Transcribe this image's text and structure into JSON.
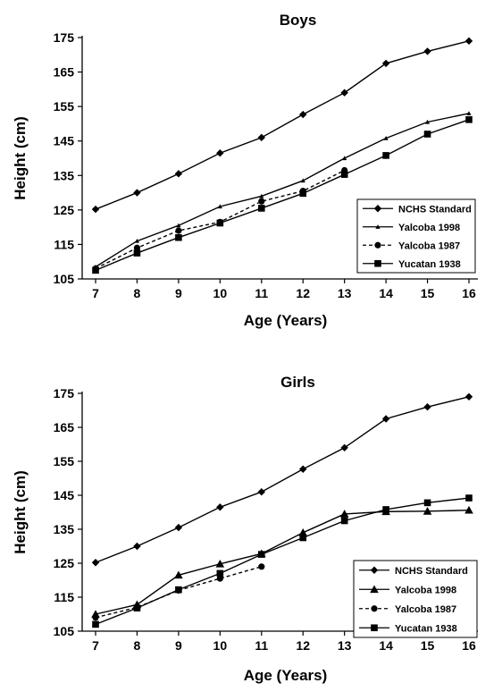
{
  "chart_data": [
    {
      "type": "line",
      "title": "Boys",
      "xlabel": "Age (Years)",
      "ylabel": "Height (cm)",
      "xlim": [
        7,
        16
      ],
      "ylim": [
        105,
        175
      ],
      "x_ticks": [
        "7",
        "8",
        "9",
        "10",
        "11",
        "12",
        "13",
        "14",
        "15",
        "16"
      ],
      "y_ticks": [
        "175",
        "165",
        "155",
        "145",
        "135",
        "125",
        "115",
        "105"
      ],
      "grid": false,
      "legend_position": "bottom-right",
      "series": [
        {
          "name": "NCHS Standard",
          "marker": "diamond",
          "dash": "solid",
          "x": [
            7,
            8,
            9,
            10,
            11,
            12,
            13,
            14,
            15,
            16
          ],
          "y": [
            125.2,
            130,
            135.5,
            141.5,
            146,
            152.7,
            159,
            167.5,
            171,
            174
          ]
        },
        {
          "name": "Yalcoba 1998",
          "marker": "small-triangle",
          "dash": "solid",
          "x": [
            7,
            8,
            9,
            10,
            11,
            12,
            13,
            14,
            15,
            16
          ],
          "y": [
            108.5,
            116,
            120.5,
            126,
            129,
            133.5,
            140,
            145.8,
            150.5,
            153
          ]
        },
        {
          "name": "Yalcoba 1987",
          "marker": "circle",
          "dash": "dashed",
          "x": [
            7,
            8,
            9,
            10,
            11,
            12,
            13
          ],
          "y": [
            108,
            114,
            119,
            121.5,
            127.5,
            130.5,
            136.5
          ]
        },
        {
          "name": "Yucatan 1938",
          "marker": "square",
          "dash": "solid",
          "x": [
            7,
            8,
            9,
            10,
            11,
            12,
            13,
            14,
            15,
            16
          ],
          "y": [
            107.5,
            112.5,
            117,
            121.2,
            125.5,
            129.8,
            135.3,
            140.8,
            147,
            151.2
          ]
        }
      ]
    },
    {
      "type": "line",
      "title": "Girls",
      "xlabel": "Age (Years)",
      "ylabel": "Height (cm)",
      "xlim": [
        7,
        16
      ],
      "ylim": [
        105,
        175
      ],
      "x_ticks": [
        "7",
        "8",
        "9",
        "10",
        "11",
        "12",
        "13",
        "14",
        "15",
        "16"
      ],
      "y_ticks": [
        "175",
        "165",
        "155",
        "145",
        "135",
        "125",
        "115",
        "105"
      ],
      "grid": false,
      "legend_position": "bottom-right",
      "series": [
        {
          "name": "NCHS Standard",
          "marker": "diamond",
          "dash": "solid",
          "x": [
            7,
            8,
            9,
            10,
            11,
            12,
            13,
            14,
            15,
            16
          ],
          "y": [
            125.2,
            130,
            135.5,
            141.5,
            146,
            152.7,
            159,
            167.5,
            171,
            174
          ]
        },
        {
          "name": "Yalcoba 1998",
          "marker": "triangle",
          "dash": "solid",
          "x": [
            7,
            8,
            9,
            10,
            11,
            12,
            13,
            14,
            15,
            16
          ],
          "y": [
            110,
            112.8,
            121.5,
            124.8,
            127.8,
            134,
            139.5,
            140.2,
            140.3,
            140.6
          ]
        },
        {
          "name": "Yalcoba 1987",
          "marker": "circle",
          "dash": "dashed",
          "x": [
            7,
            8,
            9,
            10,
            11
          ],
          "y": [
            109,
            112,
            117,
            120.5,
            124
          ]
        },
        {
          "name": "Yucatan 1938",
          "marker": "square",
          "dash": "solid",
          "x": [
            7,
            8,
            9,
            10,
            11,
            12,
            13,
            14,
            15,
            16
          ],
          "y": [
            107,
            111.8,
            117.2,
            122,
            127.6,
            132.5,
            137.5,
            140.8,
            142.8,
            144.2
          ]
        }
      ]
    }
  ]
}
